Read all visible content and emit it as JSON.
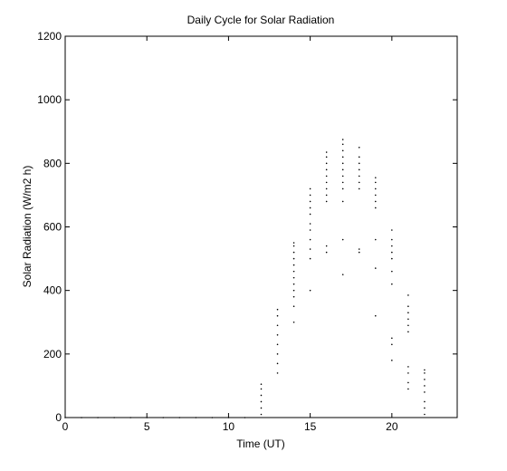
{
  "chart_data": {
    "type": "scatter",
    "title": "Daily Cycle for Solar Radiation",
    "xlabel": "Time (UT)",
    "ylabel": "Solar Radiation (W/m2 h)",
    "color": "#000000",
    "x": [
      0,
      1,
      2,
      3,
      4,
      5,
      6,
      7,
      8,
      9,
      10,
      11,
      12,
      12,
      12,
      12,
      12,
      12,
      13,
      13,
      13,
      13,
      13,
      13,
      13,
      13,
      14,
      14,
      14,
      14,
      14,
      14,
      14,
      14,
      14,
      14,
      14,
      14,
      15,
      15,
      15,
      15,
      15,
      15,
      15,
      15,
      15,
      15,
      15,
      16,
      16,
      16,
      16,
      16,
      16,
      16,
      16,
      16,
      16,
      16,
      17,
      17,
      17,
      17,
      17,
      17,
      17,
      17,
      17,
      17,
      17,
      17,
      18,
      18,
      18,
      18,
      18,
      18,
      18,
      18,
      18,
      19,
      19,
      19,
      19,
      19,
      19,
      19,
      19,
      19,
      20,
      20,
      20,
      20,
      20,
      20,
      20,
      20,
      20,
      20,
      21,
      21,
      21,
      21,
      21,
      21,
      21,
      21,
      21,
      21,
      22,
      22,
      22,
      22,
      22,
      22,
      22,
      22
    ],
    "values": [
      0,
      0,
      0,
      0,
      0,
      0,
      0,
      0,
      0,
      0,
      0,
      0,
      10,
      30,
      50,
      70,
      90,
      105,
      140,
      170,
      200,
      230,
      260,
      290,
      320,
      340,
      300,
      350,
      380,
      400,
      420,
      440,
      460,
      480,
      500,
      520,
      540,
      550,
      400,
      500,
      530,
      560,
      590,
      610,
      640,
      660,
      680,
      700,
      720,
      520,
      540,
      680,
      700,
      720,
      740,
      760,
      780,
      800,
      820,
      835,
      450,
      560,
      680,
      720,
      740,
      760,
      780,
      800,
      820,
      840,
      860,
      875,
      520,
      530,
      720,
      740,
      760,
      780,
      800,
      820,
      850,
      320,
      470,
      560,
      660,
      680,
      700,
      720,
      740,
      755,
      180,
      230,
      250,
      420,
      460,
      500,
      520,
      540,
      560,
      590,
      90,
      110,
      140,
      160,
      270,
      290,
      310,
      330,
      350,
      385,
      10,
      30,
      50,
      80,
      100,
      120,
      140,
      150
    ],
    "xlim": [
      0,
      24
    ],
    "ylim": [
      0,
      1200
    ],
    "xticks": [
      0,
      5,
      10,
      15,
      20
    ],
    "yticks": [
      0,
      200,
      400,
      600,
      800,
      1000,
      1200
    ],
    "grid": false
  }
}
